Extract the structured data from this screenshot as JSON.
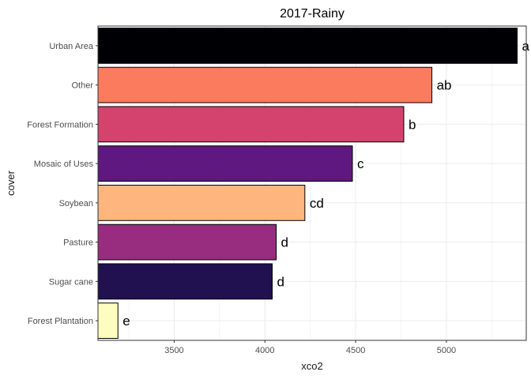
{
  "chart_data": {
    "type": "bar",
    "orientation": "horizontal",
    "title": "2017-Rainy",
    "xlabel": "xco2",
    "ylabel": "cover",
    "categories": [
      "Urban Area",
      "Other",
      "Forest Formation",
      "Mosaic of Uses",
      "Soybean",
      "Pasture",
      "Sugar cane",
      "Forest Plantation"
    ],
    "values": [
      5390,
      4920,
      4765,
      4482,
      4220,
      4062,
      4040,
      3190
    ],
    "letters": [
      "a",
      "ab",
      "b",
      "c",
      "cd",
      "d",
      "d",
      "e"
    ],
    "colors": [
      "#000004",
      "#FB7B5F",
      "#D3436E",
      "#5F187F",
      "#FEB67E",
      "#982D80",
      "#221150",
      "#FCFDBF"
    ],
    "xticks": [
      3500,
      4000,
      4500,
      5000
    ],
    "xlim": [
      3080,
      5440
    ],
    "grid": true
  }
}
